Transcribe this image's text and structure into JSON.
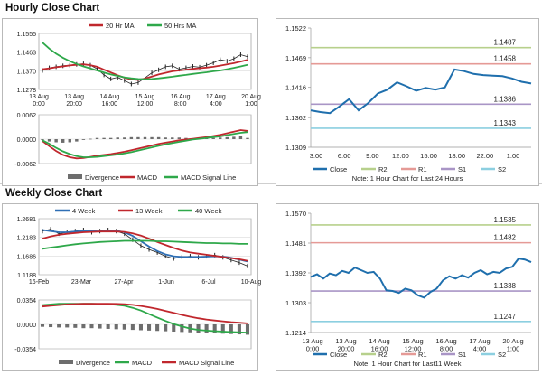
{
  "hourly": {
    "section_title": "Hourly Close Chart",
    "chart_data": [
      {
        "type": "line",
        "ylim": [
          1.1278,
          1.1555
        ],
        "y_ticks": [
          "1.1555",
          "1.1463",
          "1.1370",
          "1.1278"
        ],
        "x_ticks": [
          "13 Aug\n0:00",
          "13 Aug\n20:00",
          "14 Aug\n16:00",
          "15 Aug\n12:00",
          "16 Aug\n8:00",
          "17 Aug\n4:00",
          "20 Aug\n1:00"
        ],
        "legend": [
          "20 Hr MA",
          "50 Hrs MA"
        ],
        "colors": {
          "ma20": "#c0272d",
          "ma50": "#2ea84a",
          "price": "#222222"
        },
        "x": [
          0,
          1,
          2,
          3,
          4,
          5,
          6,
          7,
          8,
          9,
          10,
          11,
          12,
          13,
          14,
          15,
          16,
          17,
          18,
          19,
          20,
          21,
          22,
          23,
          24,
          25,
          26,
          27,
          28,
          29,
          30
        ],
        "price": [
          1.1372,
          1.1385,
          1.139,
          1.1395,
          1.1398,
          1.1402,
          1.1405,
          1.1398,
          1.138,
          1.135,
          1.133,
          1.1338,
          1.1322,
          1.1305,
          1.1312,
          1.1335,
          1.136,
          1.1375,
          1.139,
          1.1395,
          1.1378,
          1.1385,
          1.1392,
          1.1388,
          1.1398,
          1.141,
          1.1425,
          1.1418,
          1.143,
          1.145,
          1.144
        ],
        "series": [
          {
            "name": "20 Hr MA",
            "values": [
              1.1378,
              1.1382,
              1.1388,
              1.1392,
              1.1397,
              1.14,
              1.1402,
              1.1398,
              1.139,
              1.1376,
              1.1362,
              1.1348,
              1.1336,
              1.1328,
              1.1325,
              1.1332,
              1.1342,
              1.1352,
              1.136,
              1.1368,
              1.1372,
              1.1376,
              1.138,
              1.1383,
              1.1386,
              1.139,
              1.1396,
              1.1402,
              1.1408,
              1.1416,
              1.1424
            ]
          },
          {
            "name": "50 Hrs MA",
            "values": [
              1.151,
              1.148,
              1.1455,
              1.1435,
              1.1418,
              1.1404,
              1.1392,
              1.1382,
              1.1372,
              1.1362,
              1.1352,
              1.1345,
              1.1338,
              1.1333,
              1.133,
              1.1329,
              1.133,
              1.1333,
              1.1337,
              1.1341,
              1.1346,
              1.135,
              1.1355,
              1.1359,
              1.1363,
              1.1368,
              1.1372,
              1.1378,
              1.1385,
              1.1392,
              1.14
            ]
          }
        ]
      },
      {
        "type": "line",
        "ylim": [
          -0.0062,
          0.0062
        ],
        "y_ticks": [
          "0.0062",
          "0.0000",
          "-0.0062"
        ],
        "legend": [
          "Divergence",
          "MACD",
          "MACD Signal Line"
        ],
        "colors": {
          "divergence": "#6d6d6d",
          "macd": "#c0272d",
          "signal": "#2ea84a"
        },
        "x": [
          0,
          1,
          2,
          3,
          4,
          5,
          6,
          7,
          8,
          9,
          10,
          11,
          12,
          13,
          14,
          15,
          16,
          17,
          18,
          19,
          20,
          21,
          22,
          23,
          24,
          25,
          26,
          27,
          28,
          29,
          30
        ],
        "series": [
          {
            "name": "MACD",
            "values": [
              -0.0005,
              -0.0018,
              -0.003,
              -0.004,
              -0.0046,
              -0.0049,
              -0.0048,
              -0.0045,
              -0.0042,
              -0.004,
              -0.0038,
              -0.0035,
              -0.0032,
              -0.0028,
              -0.0024,
              -0.002,
              -0.0016,
              -0.0012,
              -0.0009,
              -0.0006,
              -0.0003,
              -0.0001,
              0.0001,
              0.0003,
              0.0005,
              0.0008,
              0.0011,
              0.0015,
              0.0019,
              0.0023,
              0.0021
            ]
          },
          {
            "name": "MACD Signal Line",
            "values": [
              -0.0003,
              -0.0012,
              -0.0022,
              -0.0031,
              -0.0038,
              -0.0043,
              -0.0046,
              -0.0046,
              -0.0045,
              -0.0043,
              -0.0041,
              -0.0039,
              -0.0036,
              -0.0033,
              -0.0029,
              -0.0025,
              -0.0021,
              -0.0017,
              -0.0013,
              -0.001,
              -0.0007,
              -0.0004,
              -0.0001,
              0.0001,
              0.0003,
              0.0005,
              0.0007,
              0.001,
              0.0013,
              0.0016,
              0.0018
            ]
          },
          {
            "name": "Divergence",
            "values": [
              -0.0002,
              -0.0006,
              -0.0008,
              -0.0009,
              -0.0008,
              -0.0006,
              -0.0002,
              0.0001,
              0.0003,
              0.0003,
              0.0003,
              0.0004,
              0.0004,
              0.0005,
              0.0005,
              0.0005,
              0.0005,
              0.0005,
              0.0004,
              0.0004,
              0.0004,
              0.0003,
              0.0002,
              0.0002,
              0.0002,
              0.0003,
              0.0004,
              0.0005,
              0.0006,
              0.0007,
              0.0003
            ]
          }
        ]
      },
      {
        "type": "line",
        "ylim": [
          1.1309,
          1.1522
        ],
        "y_ticks": [
          "1.1522",
          "1.1469",
          "1.1416",
          "1.1362",
          "1.1309"
        ],
        "x_ticks": [
          "3:00",
          "6:00",
          "9:00",
          "12:00",
          "15:00",
          "18:00",
          "22:00",
          "1:00"
        ],
        "x": [
          0,
          1,
          2,
          3,
          4,
          5,
          6,
          7,
          8,
          9,
          10,
          11,
          12,
          13,
          14,
          15,
          16,
          17,
          18,
          19,
          20,
          21,
          22,
          23
        ],
        "close": [
          1.1375,
          1.1372,
          1.137,
          1.1382,
          1.1395,
          1.1375,
          1.1388,
          1.1405,
          1.1412,
          1.1425,
          1.1418,
          1.141,
          1.1415,
          1.1412,
          1.1416,
          1.1448,
          1.1445,
          1.144,
          1.1438,
          1.1437,
          1.1436,
          1.1432,
          1.1426,
          1.1423
        ],
        "levels": {
          "R2": 1.1487,
          "R1": 1.1458,
          "S1": 1.1386,
          "S2": 1.1343
        },
        "level_labels": {
          "R2": "1.1487",
          "R1": "1.1458",
          "S1": "1.1386",
          "S2": "1.1343"
        },
        "legend": [
          "Close",
          "R2",
          "R1",
          "S1",
          "S2"
        ],
        "colors": {
          "close": "#1f6fad",
          "R2": "#b7d08c",
          "R1": "#e59a96",
          "S1": "#a995c6",
          "S2": "#8ccfe0"
        },
        "note": "Note: 1 Hour Chart for Last 24 Hours"
      }
    ]
  },
  "weekly": {
    "section_title": "Weekly Close Chart",
    "chart_data": [
      {
        "type": "line",
        "ylim": [
          1.1188,
          1.2681
        ],
        "y_ticks": [
          "1.2681",
          "1.2183",
          "1.1686",
          "1.1188"
        ],
        "x_ticks": [
          "16-Feb",
          "23-Mar",
          "27-Apr",
          "1-Jun",
          "6-Jul",
          "10-Aug"
        ],
        "legend": [
          "4 Week",
          "13 Week",
          "40 Week"
        ],
        "colors": {
          "w4": "#2f6fb5",
          "w13": "#c0272d",
          "w40": "#2ea84a",
          "price": "#222222"
        },
        "x": [
          0,
          1,
          2,
          3,
          4,
          5,
          6,
          7,
          8,
          9,
          10,
          11,
          12,
          13,
          14,
          15,
          16,
          17,
          18,
          19,
          20,
          21,
          22,
          23,
          24,
          25
        ],
        "price": [
          1.235,
          1.24,
          1.228,
          1.232,
          1.235,
          1.238,
          1.232,
          1.235,
          1.238,
          1.235,
          1.228,
          1.212,
          1.196,
          1.186,
          1.178,
          1.168,
          1.162,
          1.166,
          1.168,
          1.165,
          1.168,
          1.171,
          1.165,
          1.158,
          1.151,
          1.142
        ],
        "series": [
          {
            "name": "4 Week",
            "values": [
              1.238,
              1.235,
              1.232,
              1.232,
              1.234,
              1.235,
              1.235,
              1.234,
              1.235,
              1.236,
              1.232,
              1.222,
              1.208,
              1.194,
              1.182,
              1.173,
              1.168,
              1.166,
              1.166,
              1.166,
              1.167,
              1.168,
              1.167,
              1.164,
              1.159,
              1.154
            ]
          },
          {
            "name": "13 Week",
            "values": [
              1.215,
              1.221,
              1.225,
              1.228,
              1.23,
              1.232,
              1.233,
              1.234,
              1.234,
              1.234,
              1.233,
              1.229,
              1.223,
              1.215,
              1.206,
              1.198,
              1.19,
              1.183,
              1.178,
              1.175,
              1.172,
              1.169,
              1.166,
              1.163,
              1.16,
              1.156
            ]
          },
          {
            "name": "40 Week",
            "values": [
              1.188,
              1.191,
              1.194,
              1.197,
              1.2,
              1.202,
              1.204,
              1.206,
              1.207,
              1.208,
              1.209,
              1.209,
              1.209,
              1.209,
              1.208,
              1.208,
              1.207,
              1.206,
              1.205,
              1.204,
              1.203,
              1.203,
              1.202,
              1.202,
              1.201,
              1.201
            ]
          }
        ]
      },
      {
        "type": "line",
        "ylim": [
          -0.0354,
          0.0354
        ],
        "y_ticks": [
          "0.0354",
          "0.0000",
          "-0.0354"
        ],
        "legend": [
          "Divergence",
          "MACD",
          "MACD Signal Line"
        ],
        "colors": {
          "divergence": "#6d6d6d",
          "macd": "#2ea84a",
          "signal": "#c0272d"
        },
        "x": [
          0,
          1,
          2,
          3,
          4,
          5,
          6,
          7,
          8,
          9,
          10,
          11,
          12,
          13,
          14,
          15,
          16,
          17,
          18,
          19,
          20,
          21,
          22,
          23,
          24,
          25
        ],
        "series": [
          {
            "name": "MACD",
            "values": [
              0.028,
              0.029,
              0.03,
              0.03,
              0.03,
              0.03,
              0.03,
              0.0295,
              0.029,
              0.0285,
              0.027,
              0.024,
              0.02,
              0.015,
              0.01,
              0.005,
              0.0005,
              -0.003,
              -0.006,
              -0.008,
              -0.009,
              -0.0098,
              -0.0105,
              -0.011,
              -0.0115,
              -0.012
            ]
          },
          {
            "name": "MACD Signal Line",
            "values": [
              0.026,
              0.027,
              0.028,
              0.029,
              0.0295,
              0.03,
              0.03,
              0.03,
              0.03,
              0.0298,
              0.0293,
              0.0283,
              0.0268,
              0.0248,
              0.0224,
              0.0196,
              0.0167,
              0.0138,
              0.0112,
              0.0089,
              0.0071,
              0.0057,
              0.0044,
              0.0033,
              0.0023,
              0.0015
            ]
          },
          {
            "name": "Divergence",
            "values": [
              -0.0035,
              -0.004,
              -0.0045,
              -0.0045,
              -0.005,
              -0.0055,
              -0.0055,
              -0.006,
              -0.0065,
              -0.007,
              -0.0075,
              -0.008,
              -0.0085,
              -0.009,
              -0.0095,
              -0.01,
              -0.0105,
              -0.011,
              -0.0115,
              -0.012,
              -0.0125,
              -0.013,
              -0.0135,
              -0.014,
              -0.0145,
              -0.015
            ]
          }
        ]
      },
      {
        "type": "line",
        "ylim": [
          1.1214,
          1.157
        ],
        "y_ticks": [
          "1.1570",
          "1.1481",
          "1.1392",
          "1.1303",
          "1.1214"
        ],
        "x_ticks": [
          "13 Aug\n0:00",
          "13 Aug\n20:00",
          "14 Aug\n16:00",
          "15 Aug\n12:00",
          "16 Aug\n8:00",
          "17 Aug\n4:00",
          "20 Aug\n1:00"
        ],
        "x": [
          0,
          1,
          2,
          3,
          4,
          5,
          6,
          7,
          8,
          9,
          10,
          11,
          12,
          13,
          14,
          15,
          16,
          17,
          18,
          19,
          20,
          21,
          22,
          23,
          24,
          25,
          26,
          27,
          28,
          29,
          30,
          31,
          32,
          33,
          34,
          35
        ],
        "close": [
          1.138,
          1.1388,
          1.1375,
          1.139,
          1.1385,
          1.1398,
          1.1392,
          1.1408,
          1.14,
          1.1392,
          1.1395,
          1.1375,
          1.134,
          1.1338,
          1.1332,
          1.1345,
          1.134,
          1.1325,
          1.1318,
          1.1335,
          1.1345,
          1.137,
          1.1382,
          1.1375,
          1.1385,
          1.1378,
          1.1392,
          1.14,
          1.1388,
          1.1395,
          1.1392,
          1.1405,
          1.141,
          1.1435,
          1.1432,
          1.1424
        ],
        "levels": {
          "R2": 1.1535,
          "R1": 1.1482,
          "S1": 1.1338,
          "S2": 1.1247
        },
        "level_labels": {
          "R2": "1.1535",
          "R1": "1.1482",
          "S1": "1.1338",
          "S2": "1.1247"
        },
        "legend": [
          "Close",
          "R2",
          "R1",
          "S1",
          "S2"
        ],
        "colors": {
          "close": "#1f6fad",
          "R2": "#b7d08c",
          "R1": "#e59a96",
          "S1": "#a995c6",
          "S2": "#8ccfe0"
        },
        "note": "Note: 1 Hour Chart for Last11 Week"
      }
    ]
  }
}
